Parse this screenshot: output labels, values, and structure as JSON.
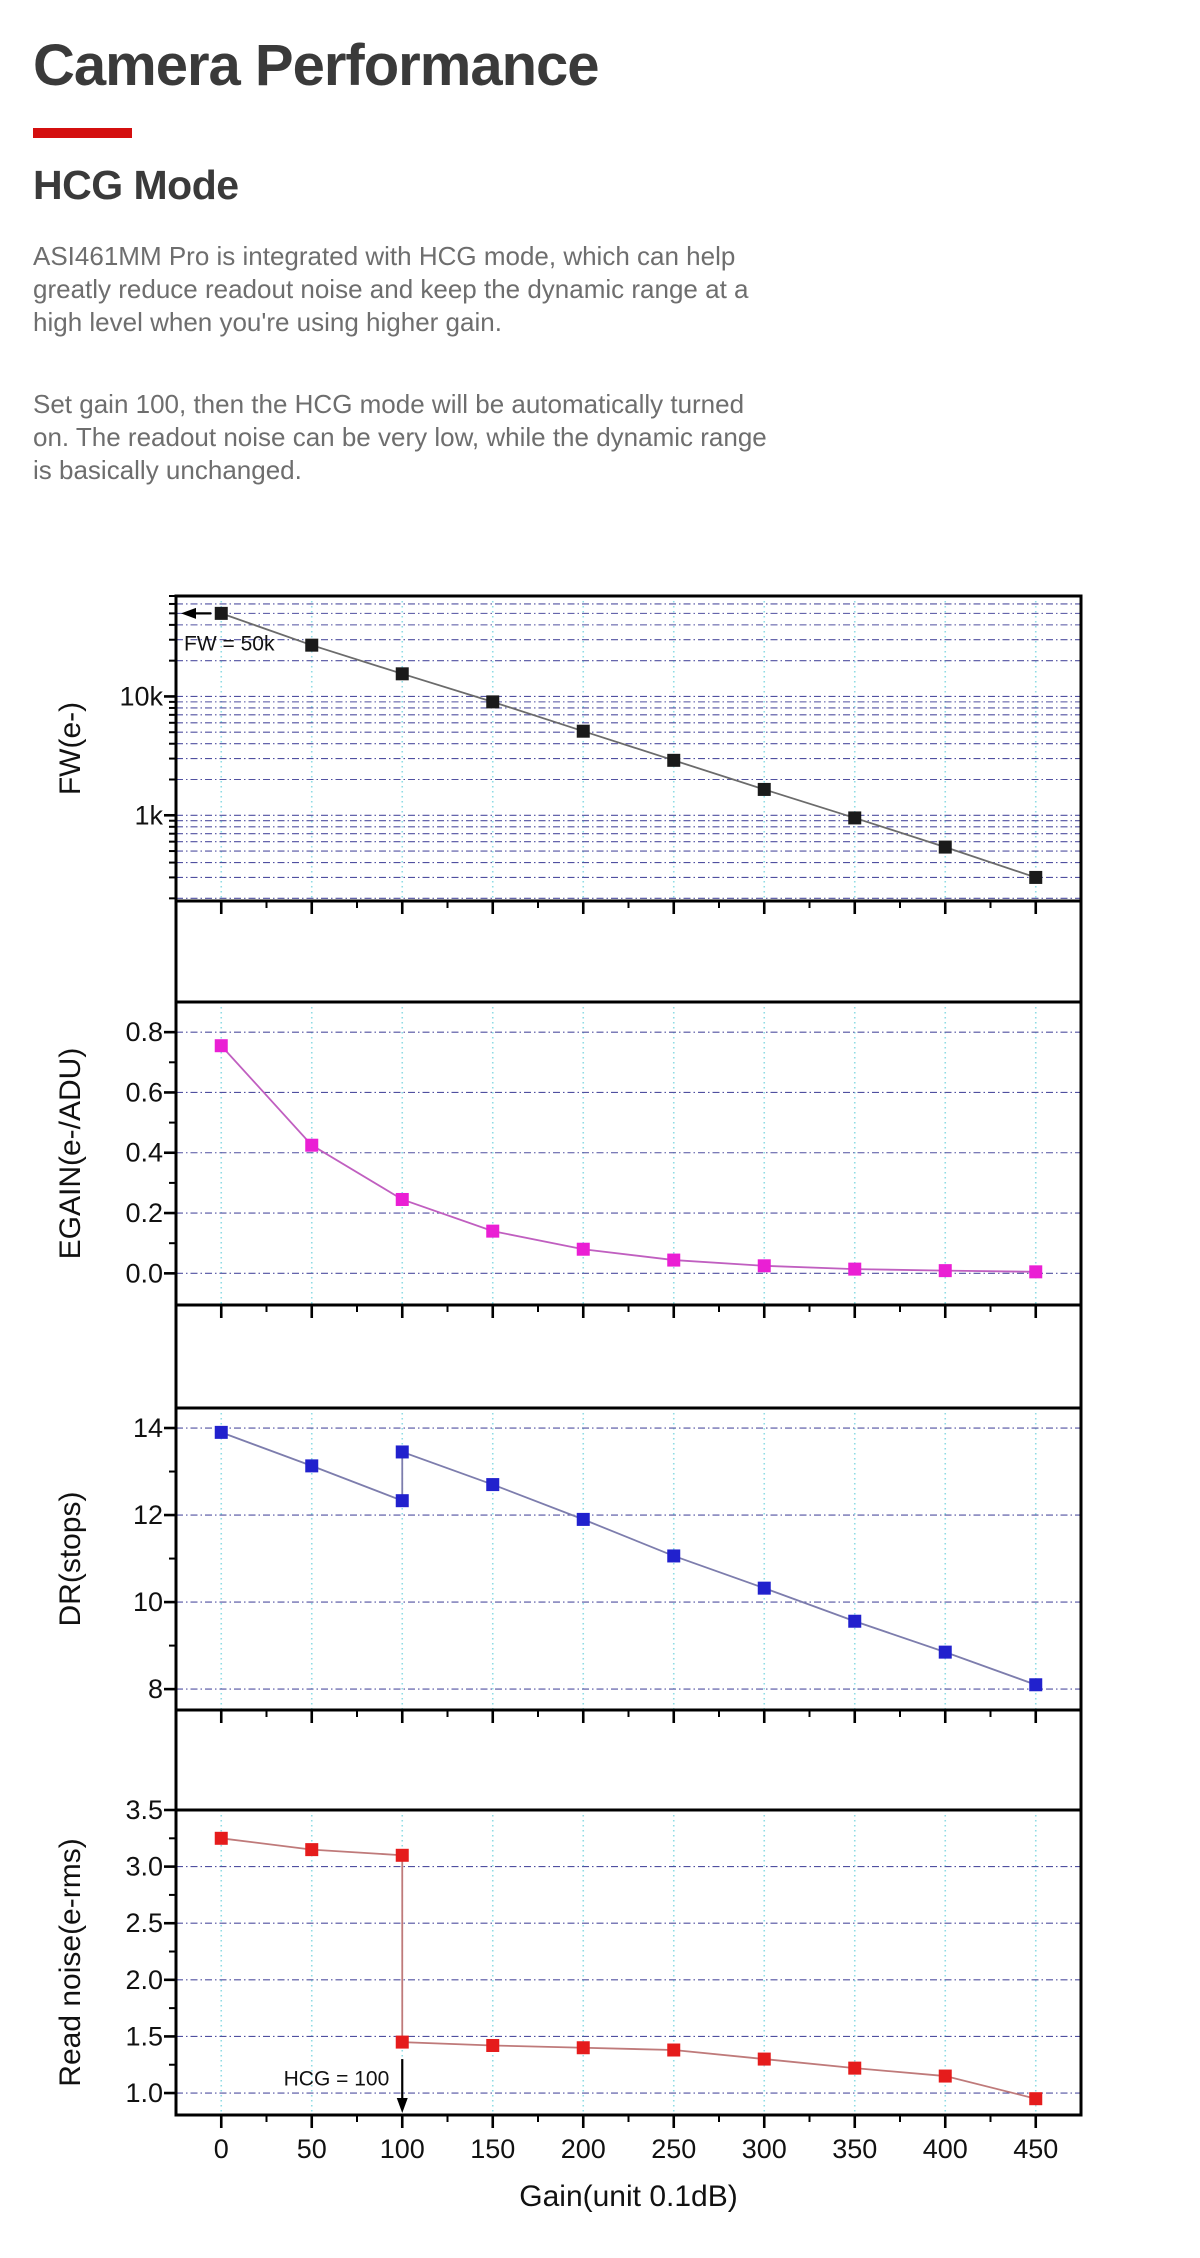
{
  "header": {
    "title": "Camera Performance",
    "section_heading": "HCG Mode",
    "paragraph1": "ASI461MM Pro is integrated with HCG mode, which can help greatly reduce readout noise and keep the dynamic range at a high level when you're using higher gain.",
    "paragraph2": "Set gain 100, then the HCG mode will be automatically turned on. The readout noise can be very low, while the dynamic range is basically unchanged.",
    "accent_color": "#d40f0f"
  },
  "chart_data": {
    "type": "line",
    "xlabel": "Gain(unit 0.1dB)",
    "x_range": [
      -25,
      475
    ],
    "x_ticks": [
      0,
      50,
      100,
      150,
      200,
      250,
      300,
      350,
      400,
      450
    ],
    "x_minor_ticks": [
      25,
      75,
      125,
      175,
      225,
      275,
      325,
      375,
      425
    ],
    "grid": true,
    "grid_colors": {
      "vertical": "#8fdbe4",
      "horizontal": "#5050a0"
    },
    "panels": [
      {
        "name": "full-well",
        "ylabel": "FW(e-)",
        "yscale": "log",
        "y_range": [
          190,
          70000
        ],
        "y_ticks": [
          {
            "value": 10000,
            "label": "10k"
          },
          {
            "value": 1000,
            "label": "1k"
          }
        ],
        "y_minor_ticks": [],
        "marker_color": "#1a1a1a",
        "line_color": "#6b6b6b",
        "annotation": {
          "text": "FW = 50k",
          "style": "arrow-left-at-first-point"
        },
        "series": [
          [
            0,
            50000
          ],
          [
            50,
            27000
          ],
          [
            100,
            15500
          ],
          [
            150,
            9000
          ],
          [
            200,
            5100
          ],
          [
            250,
            2900
          ],
          [
            300,
            1650
          ],
          [
            350,
            950
          ],
          [
            400,
            540
          ],
          [
            450,
            300
          ]
        ]
      },
      {
        "name": "egain",
        "ylabel": "EGAIN(e-/ADU)",
        "yscale": "linear",
        "y_range": [
          -0.105,
          0.9
        ],
        "y_ticks": [
          {
            "value": 0.8,
            "label": "0.8"
          },
          {
            "value": 0.6,
            "label": "0.6"
          },
          {
            "value": 0.4,
            "label": "0.4"
          },
          {
            "value": 0.2,
            "label": "0.2"
          },
          {
            "value": 0,
            "label": "0.0"
          }
        ],
        "y_minor_ticks": [
          0.7,
          0.5,
          0.3,
          0.1
        ],
        "marker_color": "#ea1fd4",
        "line_color": "#c05fc0",
        "series": [
          [
            0,
            0.755
          ],
          [
            50,
            0.425
          ],
          [
            100,
            0.245
          ],
          [
            150,
            0.14
          ],
          [
            200,
            0.08
          ],
          [
            250,
            0.044
          ],
          [
            300,
            0.025
          ],
          [
            350,
            0.014
          ],
          [
            400,
            0.009
          ],
          [
            450,
            0.005
          ]
        ]
      },
      {
        "name": "dynamic-range",
        "ylabel": "DR(stops)",
        "yscale": "linear",
        "y_range": [
          7.52,
          14.46
        ],
        "y_ticks": [
          {
            "value": 14,
            "label": "14"
          },
          {
            "value": 12,
            "label": "12"
          },
          {
            "value": 10,
            "label": "10"
          },
          {
            "value": 8,
            "label": "8"
          }
        ],
        "y_minor_ticks": [
          13,
          11,
          9
        ],
        "marker_color": "#2121cd",
        "line_color": "#7d7dad",
        "series": [
          [
            0,
            13.9
          ],
          [
            50,
            13.13
          ],
          [
            100,
            12.33
          ],
          [
            100,
            13.45
          ],
          [
            150,
            12.7
          ],
          [
            200,
            11.9
          ],
          [
            250,
            11.06
          ],
          [
            300,
            10.32
          ],
          [
            350,
            9.56
          ],
          [
            400,
            8.85
          ],
          [
            450,
            8.1
          ]
        ]
      },
      {
        "name": "read-noise",
        "ylabel": "Read noise(e-rms)",
        "yscale": "linear",
        "y_range": [
          0.806,
          3.5
        ],
        "y_ticks": [
          {
            "value": 3.5,
            "label": "3.5"
          },
          {
            "value": 3,
            "label": "3.0"
          },
          {
            "value": 2.5,
            "label": "2.5"
          },
          {
            "value": 2,
            "label": "2.0"
          },
          {
            "value": 1.5,
            "label": "1.5"
          },
          {
            "value": 1,
            "label": "1.0"
          }
        ],
        "y_minor_ticks": [
          3.25,
          2.75,
          2.25,
          1.75,
          1.25
        ],
        "marker_color": "#e51c1c",
        "line_color": "#bf7a7a",
        "annotation": {
          "text": "HCG = 100",
          "style": "arrow-down-at-gain",
          "gain": 100
        },
        "series": [
          [
            0,
            3.25
          ],
          [
            50,
            3.15
          ],
          [
            100,
            3.1
          ],
          [
            100,
            1.45
          ],
          [
            150,
            1.42
          ],
          [
            200,
            1.4
          ],
          [
            250,
            1.38
          ],
          [
            300,
            1.3
          ],
          [
            350,
            1.22
          ],
          [
            400,
            1.15
          ],
          [
            450,
            0.95
          ]
        ]
      }
    ]
  }
}
